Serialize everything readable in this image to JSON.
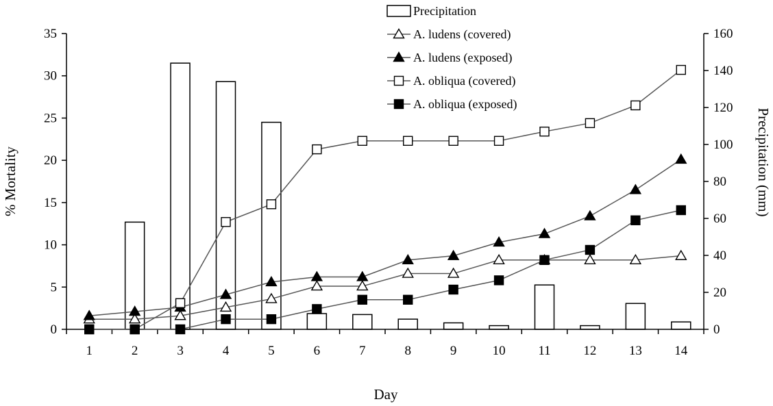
{
  "chart_data": {
    "type": "bar+line",
    "xlabel": "Day",
    "ylabel_left": "% Mortality",
    "ylabel_right": "Precipitation (mm)",
    "ylim_left": [
      0,
      35
    ],
    "ylim_right": [
      0,
      160
    ],
    "yticks_left": [
      "0",
      "5",
      "10",
      "15",
      "20",
      "25",
      "30",
      "35"
    ],
    "yticks_right": [
      "0",
      "20",
      "40",
      "60",
      "80",
      "100",
      "120",
      "140",
      "160"
    ],
    "categories": [
      "1",
      "2",
      "3",
      "4",
      "5",
      "6",
      "7",
      "8",
      "9",
      "10",
      "11",
      "12",
      "13",
      "14"
    ],
    "grid": false,
    "legend_position": "top-center",
    "bars": {
      "name": "Precipitation",
      "axis": "right",
      "values": [
        0,
        58,
        144,
        134,
        112,
        8.5,
        8,
        5.5,
        3.5,
        2,
        24,
        2,
        14,
        4
      ]
    },
    "series": [
      {
        "name": "A. ludens (covered)",
        "marker": "open-triangle",
        "values": [
          1.2,
          1.2,
          1.6,
          2.6,
          3.6,
          5.1,
          5.1,
          6.6,
          6.6,
          8.2,
          8.2,
          8.2,
          8.2,
          8.7
        ]
      },
      {
        "name": "A. ludens (exposed)",
        "marker": "filled-triangle",
        "values": [
          1.6,
          2.1,
          2.6,
          4.1,
          5.6,
          6.2,
          6.2,
          8.2,
          8.7,
          10.3,
          11.3,
          13.4,
          16.5,
          20.1
        ]
      },
      {
        "name": "A. obliqua (covered)",
        "marker": "open-square",
        "values": [
          0,
          0,
          3.1,
          12.7,
          14.8,
          21.3,
          22.3,
          22.3,
          22.3,
          22.3,
          23.4,
          24.4,
          26.5,
          30.7
        ]
      },
      {
        "name": "A. obliqua (exposed)",
        "marker": "filled-square",
        "values": [
          0,
          0,
          0,
          1.2,
          1.2,
          2.4,
          3.5,
          3.5,
          4.7,
          5.8,
          8.2,
          9.4,
          12.9,
          14.1
        ]
      }
    ]
  }
}
